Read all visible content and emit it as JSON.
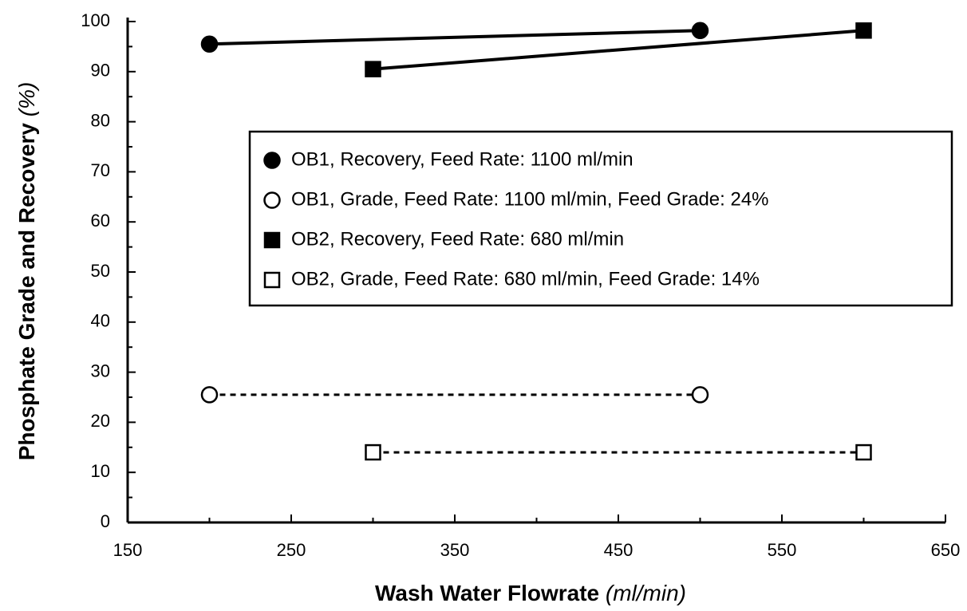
{
  "chart_data": {
    "type": "line",
    "xlabel": "Wash Water Flowrate",
    "xlabel_unit": "(ml/min)",
    "ylabel": "Phosphate Grade and Recovery",
    "ylabel_unit": "(%)",
    "xlim": [
      150,
      650
    ],
    "xticks": [
      150,
      250,
      350,
      450,
      550,
      650
    ],
    "xticks_minor": [
      200,
      300,
      400,
      500,
      600
    ],
    "ylim": [
      0,
      100
    ],
    "yticks": [
      0,
      10,
      20,
      30,
      40,
      50,
      60,
      70,
      80,
      90,
      100
    ],
    "yticks_minor": [
      5,
      15,
      25,
      35,
      45,
      55,
      65,
      75,
      85,
      95
    ],
    "grid": false,
    "legend": "center right",
    "series": [
      {
        "name": "OB1, Recovery, Feed Rate: 1100 ml/min",
        "color": "#000000",
        "marker": "circle",
        "filled": true,
        "dashed": false,
        "x": [
          200,
          500
        ],
        "values": [
          95.5,
          98.2
        ]
      },
      {
        "name": "OB1, Grade, Feed Rate: 1100 ml/min, Feed Grade: 24%",
        "color": "#000000",
        "marker": "circle",
        "filled": false,
        "dashed": true,
        "x": [
          200,
          500
        ],
        "values": [
          25.5,
          25.5
        ]
      },
      {
        "name": "OB2, Recovery, Feed Rate: 680 ml/min",
        "color": "#000000",
        "marker": "square",
        "filled": true,
        "dashed": false,
        "x": [
          300,
          600
        ],
        "values": [
          90.5,
          98.2
        ]
      },
      {
        "name": "OB2, Grade, Feed Rate: 680 ml/min, Feed Grade: 14%",
        "color": "#000000",
        "marker": "square",
        "filled": false,
        "dashed": true,
        "x": [
          300,
          600
        ],
        "values": [
          14,
          14
        ]
      }
    ]
  }
}
